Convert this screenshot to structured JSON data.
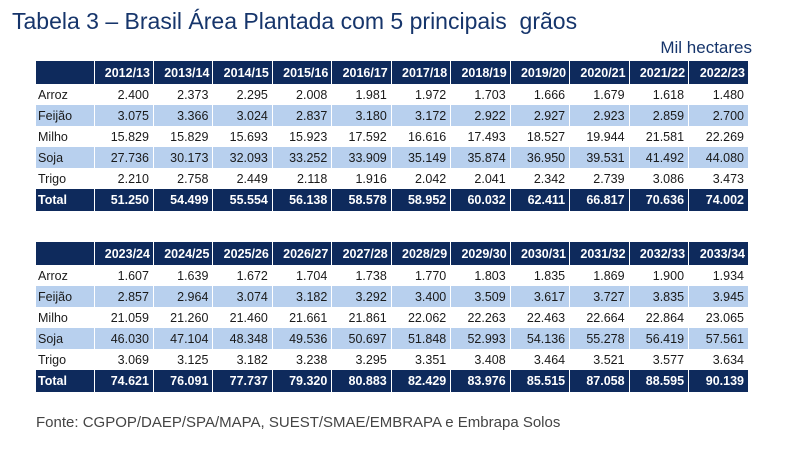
{
  "title": "Tabela 3 – Brasil Área Plantada com 5 principais  grãos",
  "unit": "Mil hectares",
  "tables": [
    {
      "years": [
        "2012/13",
        "2013/14",
        "2014/15",
        "2015/16",
        "2016/17",
        "2017/18",
        "2018/19",
        "2019/20",
        "2020/21",
        "2021/22",
        "2022/23"
      ],
      "rows": [
        {
          "label": "Arroz",
          "values": [
            "2.400",
            "2.373",
            "2.295",
            "2.008",
            "1.981",
            "1.972",
            "1.703",
            "1.666",
            "1.679",
            "1.618",
            "1.480"
          ]
        },
        {
          "label": "Feijão",
          "values": [
            "3.075",
            "3.366",
            "3.024",
            "2.837",
            "3.180",
            "3.172",
            "2.922",
            "2.927",
            "2.923",
            "2.859",
            "2.700"
          ]
        },
        {
          "label": "Milho",
          "values": [
            "15.829",
            "15.829",
            "15.693",
            "15.923",
            "17.592",
            "16.616",
            "17.493",
            "18.527",
            "19.944",
            "21.581",
            "22.269"
          ]
        },
        {
          "label": "Soja",
          "values": [
            "27.736",
            "30.173",
            "32.093",
            "33.252",
            "33.909",
            "35.149",
            "35.874",
            "36.950",
            "39.531",
            "41.492",
            "44.080"
          ]
        },
        {
          "label": "Trigo",
          "values": [
            "2.210",
            "2.758",
            "2.449",
            "2.118",
            "1.916",
            "2.042",
            "2.041",
            "2.342",
            "2.739",
            "3.086",
            "3.473"
          ]
        },
        {
          "label": "Total",
          "values": [
            "51.250",
            "54.499",
            "55.554",
            "56.138",
            "58.578",
            "58.952",
            "60.032",
            "62.411",
            "66.817",
            "70.636",
            "74.002"
          ]
        }
      ]
    },
    {
      "years": [
        "2023/24",
        "2024/25",
        "2025/26",
        "2026/27",
        "2027/28",
        "2028/29",
        "2029/30",
        "2030/31",
        "2031/32",
        "2032/33",
        "2033/34"
      ],
      "rows": [
        {
          "label": "Arroz",
          "values": [
            "1.607",
            "1.639",
            "1.672",
            "1.704",
            "1.738",
            "1.770",
            "1.803",
            "1.835",
            "1.869",
            "1.900",
            "1.934"
          ]
        },
        {
          "label": "Feijão",
          "values": [
            "2.857",
            "2.964",
            "3.074",
            "3.182",
            "3.292",
            "3.400",
            "3.509",
            "3.617",
            "3.727",
            "3.835",
            "3.945"
          ]
        },
        {
          "label": "Milho",
          "values": [
            "21.059",
            "21.260",
            "21.460",
            "21.661",
            "21.861",
            "22.062",
            "22.263",
            "22.463",
            "22.664",
            "22.864",
            "23.065"
          ]
        },
        {
          "label": "Soja",
          "values": [
            "46.030",
            "47.104",
            "48.348",
            "49.536",
            "50.697",
            "51.848",
            "52.993",
            "54.136",
            "55.278",
            "56.419",
            "57.561"
          ]
        },
        {
          "label": "Trigo",
          "values": [
            "3.069",
            "3.125",
            "3.182",
            "3.238",
            "3.295",
            "3.351",
            "3.408",
            "3.464",
            "3.521",
            "3.577",
            "3.634"
          ]
        },
        {
          "label": "Total",
          "values": [
            "74.621",
            "76.091",
            "77.737",
            "79.320",
            "80.883",
            "82.429",
            "83.976",
            "85.515",
            "87.058",
            "88.595",
            "90.139"
          ]
        }
      ]
    }
  ],
  "source": "Fonte: CGPOP/DAEP/SPA/MAPA, SUEST/SMAE/EMBRAPA e Embrapa Solos"
}
